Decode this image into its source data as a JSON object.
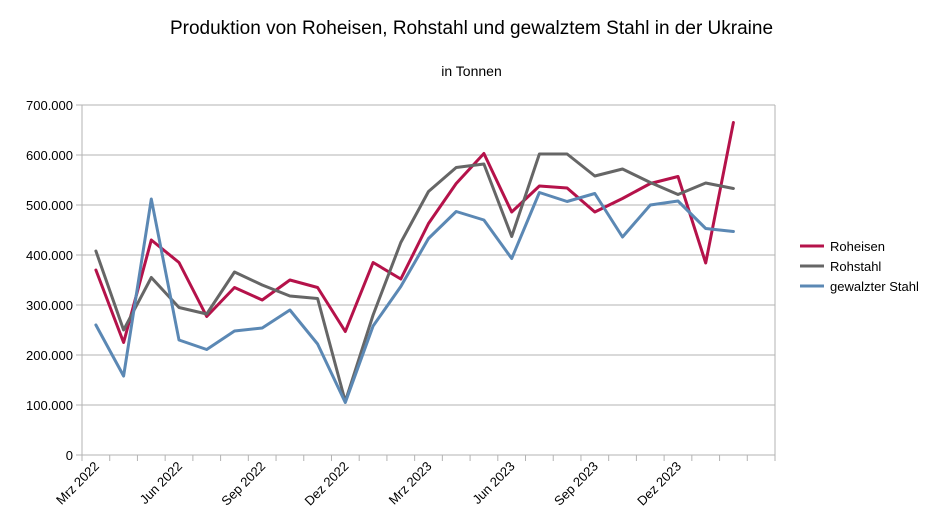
{
  "chart_data": {
    "type": "line",
    "title": "Produktion von Roheisen, Rohstahl und gewalztem Stahl in der Ukraine",
    "subtitle": "in Tonnen",
    "xlabel": "",
    "ylabel": "",
    "ylim": [
      0,
      700000
    ],
    "y_ticks": [
      0,
      100000,
      200000,
      300000,
      400000,
      500000,
      600000,
      700000
    ],
    "y_tick_labels": [
      "0",
      "100.000",
      "200.000",
      "300.000",
      "400.000",
      "500.000",
      "600.000",
      "700.000"
    ],
    "x": [
      "2022-03",
      "2022-04",
      "2022-05",
      "2022-06",
      "2022-07",
      "2022-08",
      "2022-09",
      "2022-10",
      "2022-11",
      "2022-12",
      "2023-01",
      "2023-02",
      "2023-03",
      "2023-04",
      "2023-05",
      "2023-06",
      "2023-07",
      "2023-08",
      "2023-09",
      "2023-10",
      "2023-11",
      "2023-12",
      "2024-01",
      "2024-02",
      "2024-03"
    ],
    "x_tick_labels": [
      "Mrz 2022",
      "Jun 2022",
      "Sep 2022",
      "Dez 2022",
      "Mrz 2023",
      "Jun 2023",
      "Sep 2023",
      "Dez 2023"
    ],
    "x_tick_positions": [
      "2022-03",
      "2022-06",
      "2022-09",
      "2022-12",
      "2023-03",
      "2023-06",
      "2023-09",
      "2023-12"
    ],
    "grid": true,
    "legend_position": "right",
    "series": [
      {
        "name": "Roheisen",
        "color": "#b5124a",
        "values": [
          370000,
          225000,
          430000,
          385000,
          277000,
          335000,
          310000,
          350000,
          335000,
          247000,
          385000,
          352000,
          463000,
          543000,
          603000,
          486000,
          538000,
          534000,
          486000,
          513000,
          543000,
          557000,
          384000,
          665000,
          null
        ]
      },
      {
        "name": "Rohstahl",
        "color": "#666666",
        "values": [
          408000,
          250000,
          355000,
          295000,
          282000,
          366000,
          340000,
          318000,
          313000,
          107000,
          280000,
          425000,
          527000,
          575000,
          582000,
          437000,
          602000,
          602000,
          558000,
          572000,
          545000,
          521000,
          544000,
          533000,
          null
        ]
      },
      {
        "name": "gewalzter Stahl",
        "color": "#5b88b4",
        "values": [
          260000,
          158000,
          512000,
          230000,
          211000,
          248000,
          254000,
          290000,
          222000,
          105000,
          258000,
          337000,
          433000,
          487000,
          470000,
          393000,
          525000,
          507000,
          523000,
          436000,
          500000,
          508000,
          453000,
          447000,
          null
        ]
      }
    ]
  }
}
